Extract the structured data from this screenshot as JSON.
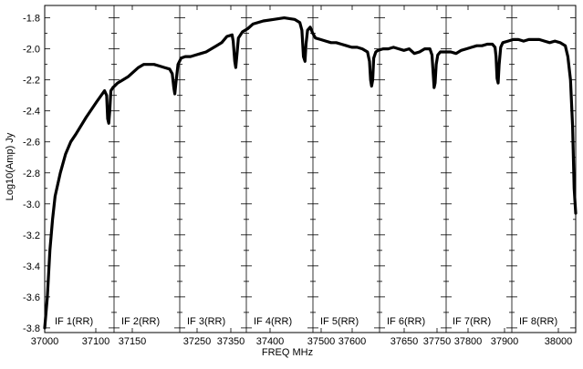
{
  "chart_data": {
    "type": "line",
    "xlabel": "FREQ MHz",
    "ylabel": "Log10(Amp) Jy",
    "xlim": [
      37000,
      38020
    ],
    "ylim": [
      -3.83,
      -1.72
    ],
    "x_ticks": [
      "37000",
      "37100",
      "37150",
      "37250",
      "37350",
      "37400",
      "37500",
      "37600",
      "37650",
      "37750",
      "37800",
      "37900",
      "38000"
    ],
    "y_ticks": [
      "-1.8",
      "-2.0",
      "-2.2",
      "-2.4",
      "-2.6",
      "-2.8",
      "-3.0",
      "-3.2",
      "-3.4",
      "-3.6",
      "-3.8"
    ],
    "if_labels": [
      "IF 1(RR)",
      "IF 2(RR)",
      "IF 3(RR)",
      "IF 4(RR)",
      "IF 5(RR)",
      "IF 6(RR)",
      "IF 7(RR)",
      "IF 8(RR)"
    ],
    "series": [
      {
        "x": [
          37000,
          37005,
          37010,
          37015,
          37020,
          37030,
          37040,
          37050,
          37060,
          37080,
          37100,
          37115,
          37119,
          37121,
          37123,
          37125,
          37127,
          37131,
          37140,
          37150,
          37160,
          37170,
          37180,
          37190,
          37200,
          37210,
          37220,
          37230,
          37240,
          37245,
          37248,
          37250,
          37252,
          37256,
          37262,
          37270,
          37280,
          37290,
          37300,
          37310,
          37320,
          37330,
          37340,
          37350,
          37360,
          37362,
          37365,
          37367,
          37369,
          37372,
          37380,
          37390,
          37400,
          37420,
          37440,
          37460,
          37480,
          37490,
          37494,
          37497,
          37500,
          37502,
          37505,
          37510,
          37515,
          37520,
          37530,
          37540,
          37550,
          37560,
          37570,
          37580,
          37590,
          37600,
          37610,
          37620,
          37624,
          37626,
          37628,
          37630,
          37632,
          37636,
          37640,
          37650,
          37660,
          37670,
          37680,
          37690,
          37700,
          37710,
          37720,
          37730,
          37740,
          37744,
          37746,
          37748,
          37750,
          37752,
          37755,
          37760,
          37770,
          37780,
          37790,
          37800,
          37810,
          37820,
          37830,
          37840,
          37850,
          37860,
          37865,
          37867,
          37869,
          37871,
          37873,
          37876,
          37880,
          37890,
          37900,
          37910,
          37920,
          37930,
          37940,
          37950,
          37960,
          37970,
          37980,
          37990,
          38000,
          38005,
          38010,
          38014,
          38017,
          38020
        ],
        "y": [
          -3.8,
          -3.6,
          -3.3,
          -3.1,
          -2.95,
          -2.8,
          -2.68,
          -2.6,
          -2.55,
          -2.44,
          -2.34,
          -2.27,
          -2.3,
          -2.45,
          -2.48,
          -2.4,
          -2.27,
          -2.25,
          -2.22,
          -2.2,
          -2.18,
          -2.15,
          -2.12,
          -2.1,
          -2.1,
          -2.1,
          -2.11,
          -2.12,
          -2.13,
          -2.16,
          -2.25,
          -2.29,
          -2.22,
          -2.1,
          -2.06,
          -2.05,
          -2.05,
          -2.04,
          -2.03,
          -2.02,
          -2.0,
          -1.98,
          -1.96,
          -1.92,
          -1.91,
          -1.95,
          -2.08,
          -2.12,
          -2.05,
          -1.93,
          -1.89,
          -1.87,
          -1.84,
          -1.82,
          -1.81,
          -1.8,
          -1.81,
          -1.83,
          -1.88,
          -2.05,
          -2.08,
          -1.97,
          -1.88,
          -1.86,
          -1.9,
          -1.93,
          -1.94,
          -1.95,
          -1.96,
          -1.96,
          -1.97,
          -1.98,
          -1.99,
          -1.99,
          -2.0,
          -2.02,
          -2.08,
          -2.2,
          -2.24,
          -2.2,
          -2.06,
          -2.02,
          -2.01,
          -2.0,
          -2.0,
          -1.99,
          -2.0,
          -2.01,
          -2.0,
          -2.03,
          -2.02,
          -2.0,
          -2.0,
          -2.04,
          -2.15,
          -2.25,
          -2.22,
          -2.1,
          -2.04,
          -2.02,
          -2.02,
          -2.02,
          -2.03,
          -2.01,
          -2.0,
          -1.99,
          -1.98,
          -1.98,
          -1.97,
          -1.97,
          -1.99,
          -2.05,
          -2.19,
          -2.22,
          -2.1,
          -1.99,
          -1.96,
          -1.95,
          -1.94,
          -1.94,
          -1.95,
          -1.94,
          -1.94,
          -1.94,
          -1.95,
          -1.96,
          -1.95,
          -1.96,
          -1.98,
          -2.05,
          -2.2,
          -2.5,
          -2.9,
          -3.06
        ]
      }
    ]
  }
}
